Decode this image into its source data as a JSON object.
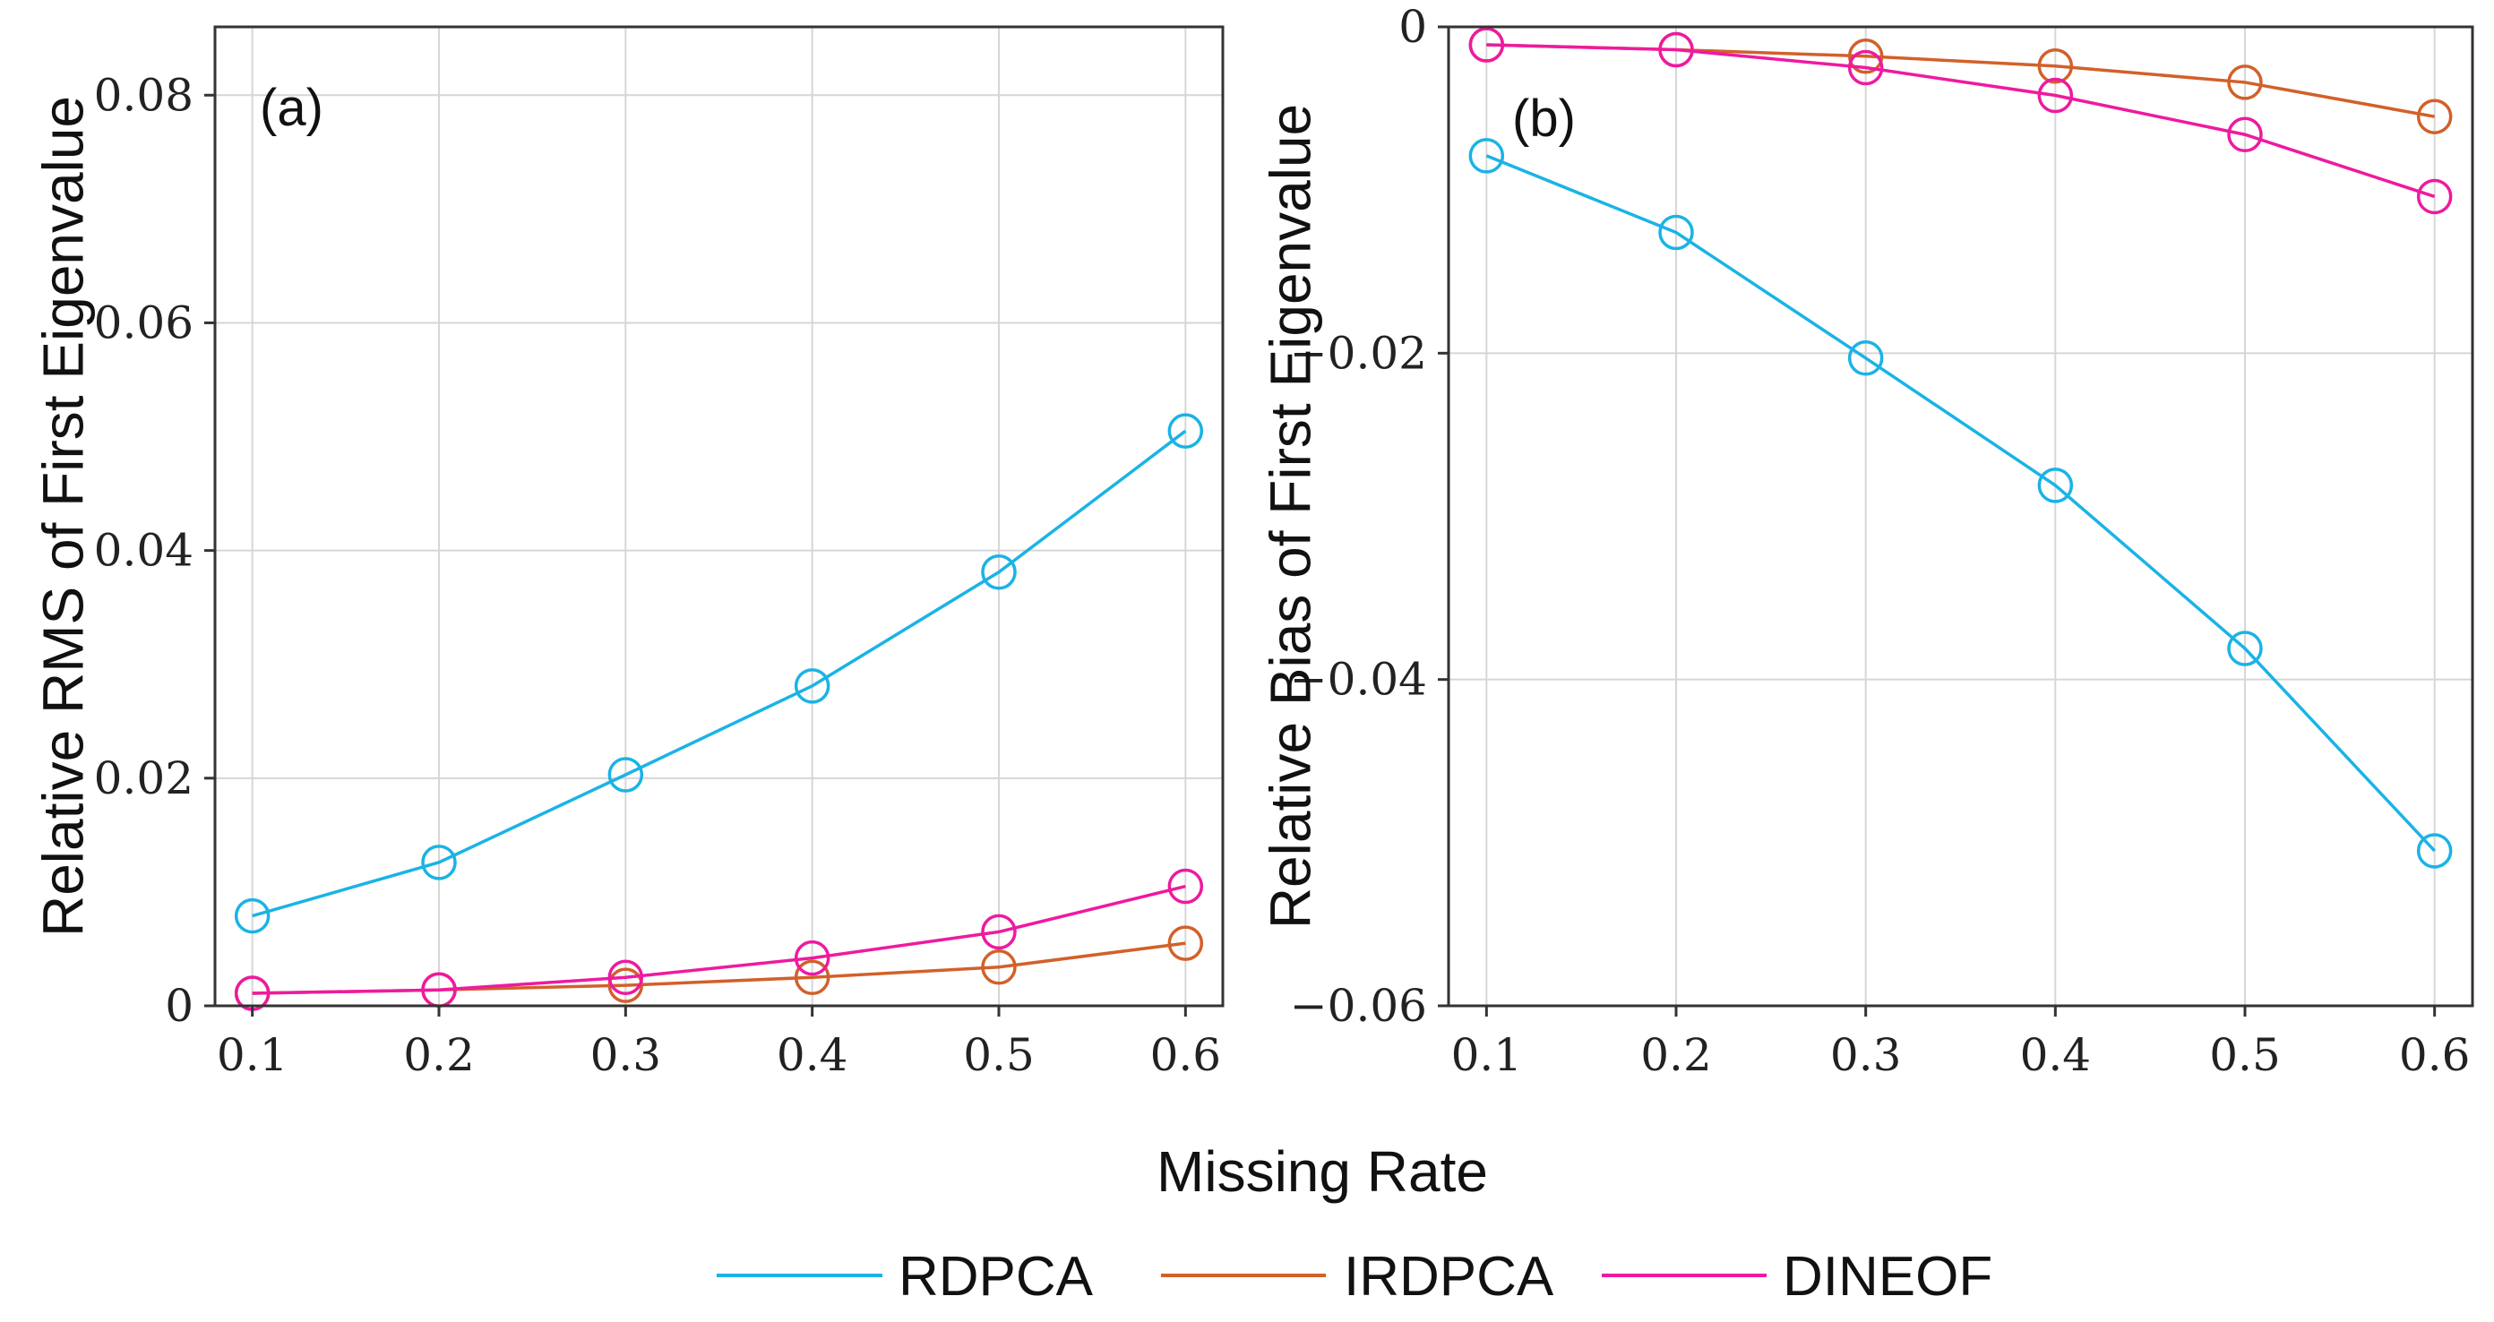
{
  "figure": {
    "shared_xlabel": "Missing Rate"
  },
  "legend": [
    {
      "name": "RDPCA",
      "color": "#1ab3e6"
    },
    {
      "name": "IRDPCA",
      "color": "#d2602a"
    },
    {
      "name": "DINEOF",
      "color": "#ee1aa0"
    }
  ],
  "chart_data": [
    {
      "type": "line",
      "panel_label": "(a)",
      "xlabel": "Missing Rate",
      "ylabel": "Relative RMS of First Eigenvalue",
      "x": [
        0.1,
        0.2,
        0.3,
        0.4,
        0.5,
        0.6
      ],
      "xlim": [
        0.08,
        0.62
      ],
      "ylim": [
        0,
        0.086
      ],
      "xticks": [
        "0.1",
        "0.2",
        "0.3",
        "0.4",
        "0.5",
        "0.6"
      ],
      "yticks": [
        0,
        0.02,
        0.04,
        0.06,
        0.08
      ],
      "ytick_labels": [
        "0",
        "0.02",
        "0.04",
        "0.06",
        "0.08"
      ],
      "grid": true,
      "series": [
        {
          "name": "RDPCA",
          "color": "#1ab3e6",
          "values": [
            0.0079,
            0.0126,
            0.0203,
            0.0281,
            0.0381,
            0.0505
          ]
        },
        {
          "name": "IRDPCA",
          "color": "#d2602a",
          "values": [
            0.0011,
            0.0014,
            0.0018,
            0.0025,
            0.0034,
            0.0055
          ]
        },
        {
          "name": "DINEOF",
          "color": "#ee1aa0",
          "values": [
            0.0011,
            0.0014,
            0.0025,
            0.0042,
            0.0065,
            0.0105
          ]
        }
      ]
    },
    {
      "type": "line",
      "panel_label": "(b)",
      "xlabel": "Missing Rate",
      "ylabel": "Relative Bias of First Eigenvalue",
      "x": [
        0.1,
        0.2,
        0.3,
        0.4,
        0.5,
        0.6
      ],
      "xlim": [
        0.08,
        0.62
      ],
      "ylim": [
        -0.06,
        0
      ],
      "xticks": [
        "0.1",
        "0.2",
        "0.3",
        "0.4",
        "0.5",
        "0.6"
      ],
      "yticks": [
        0,
        -0.02,
        -0.04,
        -0.06
      ],
      "ytick_labels": [
        "0",
        "−0.02",
        "−0.04",
        "−0.06"
      ],
      "grid": true,
      "series": [
        {
          "name": "RDPCA",
          "color": "#1ab3e6",
          "values": [
            -0.0079,
            -0.0126,
            -0.0203,
            -0.0281,
            -0.0381,
            -0.0505
          ]
        },
        {
          "name": "IRDPCA",
          "color": "#d2602a",
          "values": [
            -0.0011,
            -0.0014,
            -0.0018,
            -0.0024,
            -0.0034,
            -0.0055
          ]
        },
        {
          "name": "DINEOF",
          "color": "#ee1aa0",
          "values": [
            -0.0011,
            -0.0014,
            -0.0025,
            -0.0042,
            -0.0066,
            -0.0104
          ]
        }
      ]
    }
  ]
}
